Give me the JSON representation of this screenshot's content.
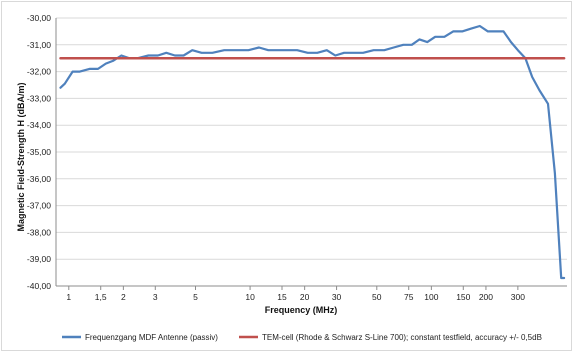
{
  "chart_data": {
    "type": "line",
    "xlabel": "Frequency (MHz)",
    "ylabel": "Magnetic Field-Strength H (dBA/m)",
    "x_scale": "log",
    "xlim": [
      0.85,
      560
    ],
    "ylim": [
      -40,
      -30
    ],
    "grid": "horizontal",
    "legend_position": "bottom",
    "y_ticks": [
      {
        "value": -30,
        "label": "-30,00"
      },
      {
        "value": -31,
        "label": "-31,00"
      },
      {
        "value": -32,
        "label": "-32,00"
      },
      {
        "value": -33,
        "label": "-33,00"
      },
      {
        "value": -34,
        "label": "-34,00"
      },
      {
        "value": -35,
        "label": "-35,00"
      },
      {
        "value": -36,
        "label": "-36,00"
      },
      {
        "value": -37,
        "label": "-37,00"
      },
      {
        "value": -38,
        "label": "-38,00"
      },
      {
        "value": -39,
        "label": "-39,00"
      },
      {
        "value": -40,
        "label": "-40,00"
      }
    ],
    "x_ticks": [
      {
        "value": 1,
        "label": "1"
      },
      {
        "value": 1.5,
        "label": "1,5"
      },
      {
        "value": 2,
        "label": "2"
      },
      {
        "value": 3,
        "label": "3"
      },
      {
        "value": 5,
        "label": "5"
      },
      {
        "value": 10,
        "label": "10"
      },
      {
        "value": 15,
        "label": "15"
      },
      {
        "value": 20,
        "label": "20"
      },
      {
        "value": 30,
        "label": "30"
      },
      {
        "value": 50,
        "label": "50"
      },
      {
        "value": 75,
        "label": "75"
      },
      {
        "value": 100,
        "label": "100"
      },
      {
        "value": 150,
        "label": "150"
      },
      {
        "value": 200,
        "label": "200"
      },
      {
        "value": 300,
        "label": "300"
      }
    ],
    "series": [
      {
        "name": "Frequenzgang MDF Antenne (passiv)",
        "color": "#4f81bd",
        "x": [
          0.9,
          0.95,
          1.05,
          1.15,
          1.3,
          1.45,
          1.6,
          1.75,
          1.95,
          2.15,
          2.4,
          2.75,
          3.1,
          3.45,
          3.85,
          4.3,
          4.8,
          5.4,
          6.2,
          7.2,
          8.4,
          9.8,
          11.2,
          12.6,
          14.2,
          16,
          18.2,
          20.8,
          23.5,
          26.5,
          29.5,
          33,
          37,
          42,
          48,
          55,
          62,
          70,
          78,
          86,
          95,
          105,
          118,
          132,
          148,
          165,
          185,
          205,
          225,
          250,
          275,
          300,
          330,
          360,
          395,
          440,
          480,
          520,
          540
        ],
        "y": [
          -32.6,
          -32.45,
          -32.0,
          -32.0,
          -31.9,
          -31.9,
          -31.7,
          -31.6,
          -31.4,
          -31.5,
          -31.5,
          -31.4,
          -31.4,
          -31.3,
          -31.4,
          -31.4,
          -31.2,
          -31.3,
          -31.3,
          -31.2,
          -31.2,
          -31.2,
          -31.1,
          -31.2,
          -31.2,
          -31.2,
          -31.2,
          -31.3,
          -31.3,
          -31.2,
          -31.4,
          -31.3,
          -31.3,
          -31.3,
          -31.2,
          -31.2,
          -31.1,
          -31.0,
          -31.0,
          -30.8,
          -30.9,
          -30.7,
          -30.7,
          -30.5,
          -30.5,
          -30.4,
          -30.3,
          -30.5,
          -30.5,
          -30.5,
          -30.9,
          -31.2,
          -31.5,
          -32.2,
          -32.7,
          -33.2,
          -35.8,
          -39.7,
          -39.7
        ]
      },
      {
        "name": "TEM-cell (Rhode & Schwarz S-Line 700); constant testfield, accuracy +/- 0,5dB",
        "color": "#c0504d",
        "x": [
          0.9,
          540
        ],
        "y": [
          -31.5,
          -31.5
        ]
      }
    ]
  }
}
